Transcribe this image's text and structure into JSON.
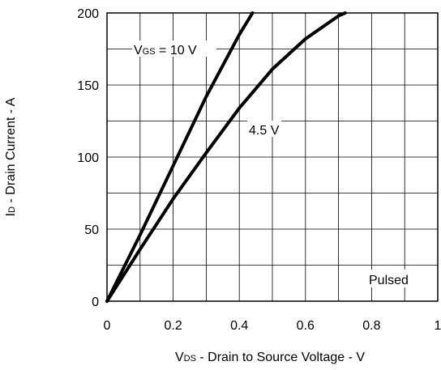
{
  "chart_data": {
    "type": "line",
    "xlabel": {
      "main": "V",
      "sub": "DS",
      "rest": " - Drain to Source Voltage - V"
    },
    "ylabel": {
      "main": "I",
      "sub": "D",
      "rest": " - Drain Current - A"
    },
    "xlim": [
      0,
      1
    ],
    "ylim": [
      0,
      200
    ],
    "xticks": [
      0,
      0.2,
      0.4,
      0.6,
      0.8,
      1
    ],
    "xtick_labels": [
      "0",
      "0.2",
      "0.4",
      "0.6",
      "0.8",
      "1"
    ],
    "yticks": [
      0,
      50,
      100,
      150,
      200
    ],
    "ytick_labels": [
      "0",
      "50",
      "100",
      "150",
      "200"
    ],
    "grid": true,
    "series": [
      {
        "name": "VGS = 10 V",
        "x": [
          0,
          0.1,
          0.2,
          0.3,
          0.4,
          0.44
        ],
        "y": [
          0,
          46,
          94,
          142,
          185,
          200
        ]
      },
      {
        "name": "4.5 V",
        "x": [
          0,
          0.1,
          0.2,
          0.3,
          0.4,
          0.5,
          0.6,
          0.7,
          0.72
        ],
        "y": [
          0,
          36,
          71,
          103,
          134,
          161,
          182,
          198,
          200
        ]
      }
    ],
    "annotations": {
      "vgs": {
        "main": "V",
        "sub": "GS",
        "rest": " = 10 V"
      },
      "v45": "4.5 V",
      "pulsed": "Pulsed"
    }
  }
}
